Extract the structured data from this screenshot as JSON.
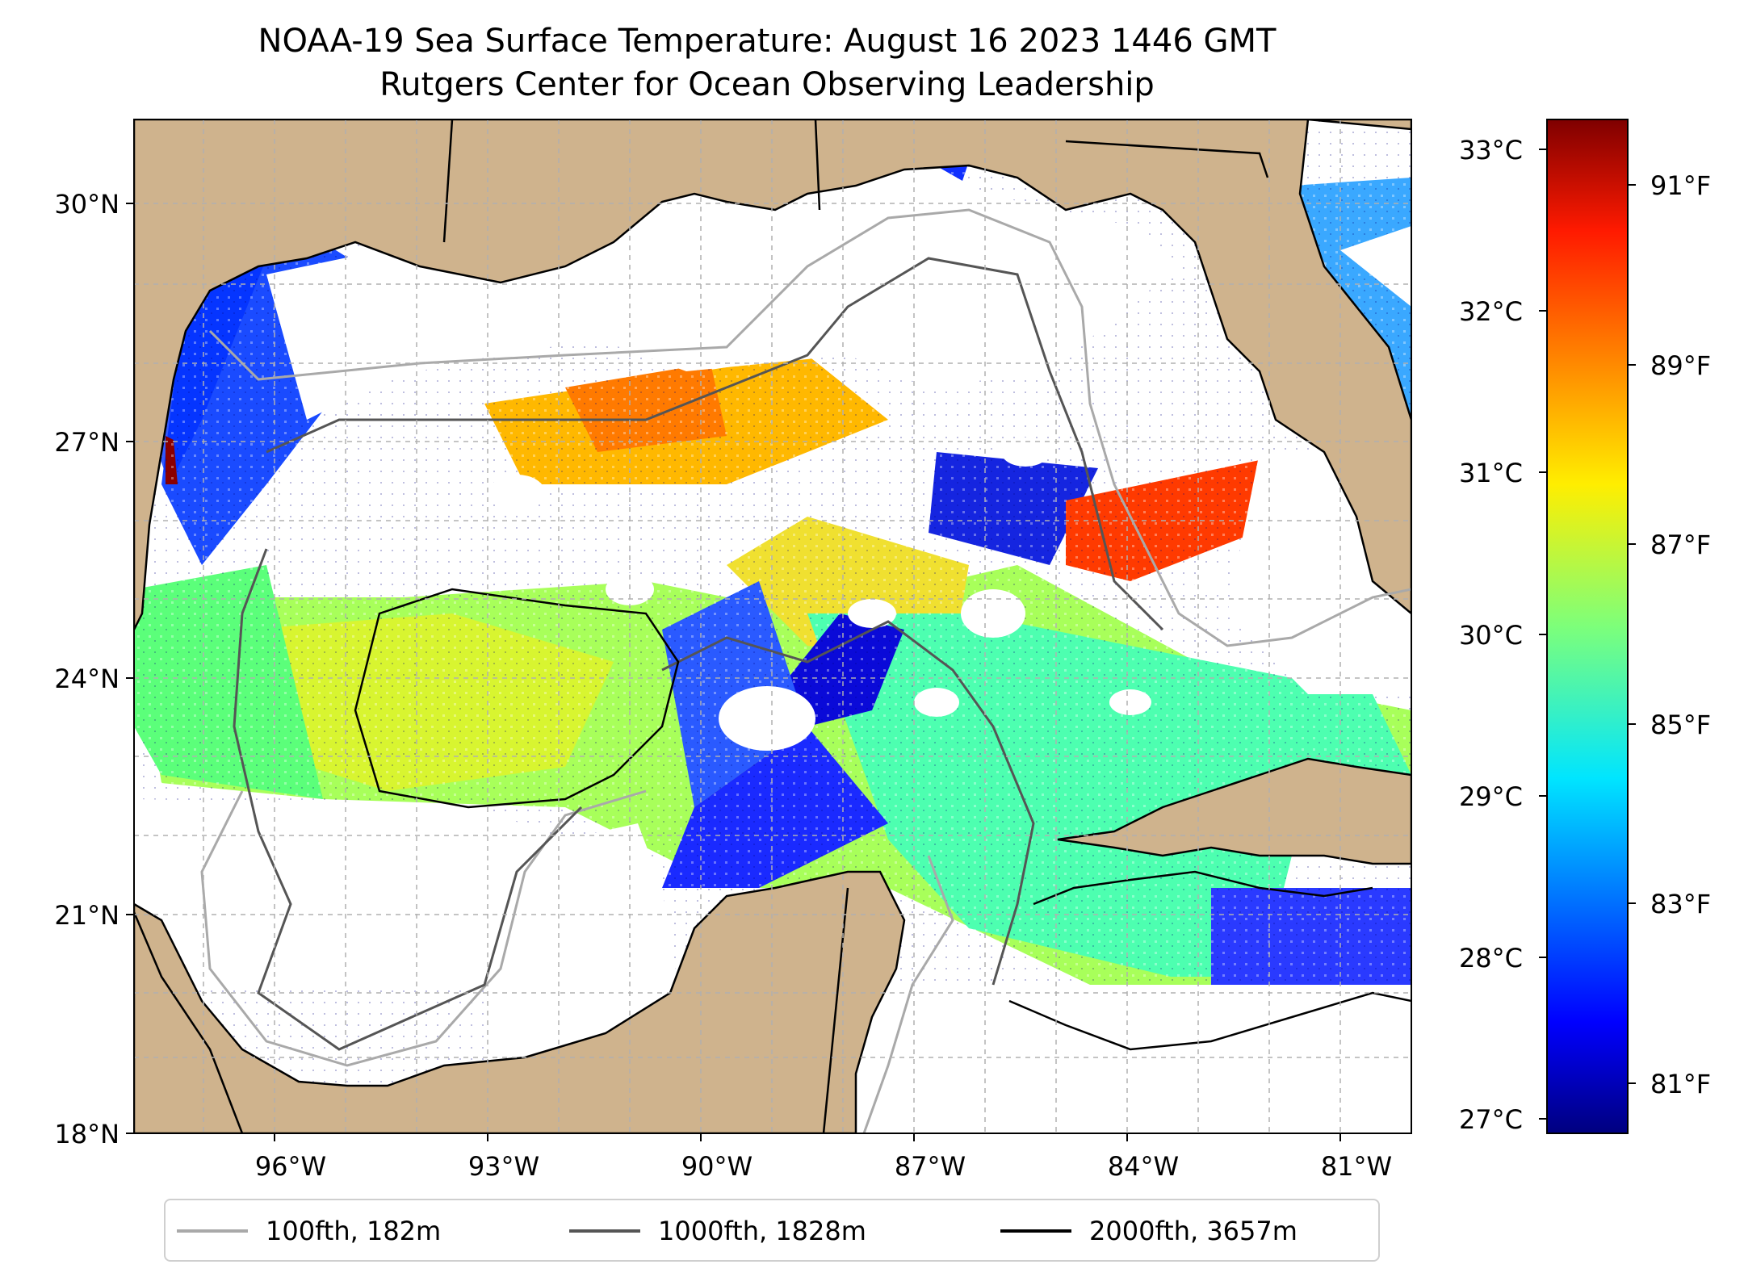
{
  "title": {
    "line1": "NOAA-19 Sea Surface Temperature: August 16 2023 1446 GMT",
    "line2": "Rutgers Center for Ocean Observing Leadership"
  },
  "map": {
    "region": "Gulf of Mexico",
    "lat_ticks": [
      "30°N",
      "27°N",
      "24°N",
      "21°N",
      "18°N"
    ],
    "lon_ticks": [
      "96°W",
      "93°W",
      "90°W",
      "87°W",
      "84°W",
      "81°W"
    ],
    "land_color": "#cfb38d",
    "ocean_missing_color": "#ffffff"
  },
  "colorbar": {
    "colormap": "jet",
    "celsius_ticks": [
      "33°C",
      "32°C",
      "31°C",
      "30°C",
      "29°C",
      "28°C",
      "27°C"
    ],
    "fahrenheit_ticks": [
      "91°F",
      "89°F",
      "87°F",
      "85°F",
      "83°F",
      "81°F"
    ]
  },
  "legend": {
    "items": [
      {
        "label": "100fth, 182m",
        "color": "#a9a9a9"
      },
      {
        "label": "1000fth, 1828m",
        "color": "#555555"
      },
      {
        "label": "2000fth, 3657m",
        "color": "#000000"
      }
    ]
  }
}
